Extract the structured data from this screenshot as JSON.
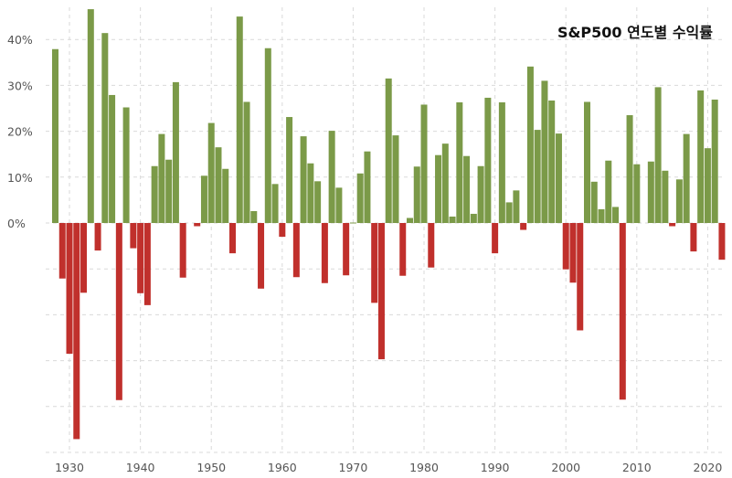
{
  "chart_data": {
    "type": "bar",
    "title": "S&P500 연도별 수익률",
    "xlabel": "",
    "ylabel": "",
    "x": [
      1928,
      1929,
      1930,
      1931,
      1932,
      1933,
      1934,
      1935,
      1936,
      1937,
      1938,
      1939,
      1940,
      1941,
      1942,
      1943,
      1944,
      1945,
      1946,
      1947,
      1948,
      1949,
      1950,
      1951,
      1952,
      1953,
      1954,
      1955,
      1956,
      1957,
      1958,
      1959,
      1960,
      1961,
      1962,
      1963,
      1964,
      1965,
      1966,
      1967,
      1968,
      1969,
      1970,
      1971,
      1972,
      1973,
      1974,
      1975,
      1976,
      1977,
      1978,
      1979,
      1980,
      1981,
      1982,
      1983,
      1984,
      1985,
      1986,
      1987,
      1988,
      1989,
      1990,
      1991,
      1992,
      1993,
      1994,
      1995,
      1996,
      1997,
      1998,
      1999,
      2000,
      2001,
      2002,
      2003,
      2004,
      2005,
      2006,
      2007,
      2008,
      2009,
      2010,
      2011,
      2012,
      2013,
      2014,
      2015,
      2016,
      2017,
      2018,
      2019,
      2020,
      2021,
      2022
    ],
    "values": [
      37.9,
      -12.1,
      -28.5,
      -47.1,
      -15.2,
      46.6,
      -6.0,
      41.4,
      27.9,
      -38.6,
      25.2,
      -5.5,
      -15.3,
      -17.9,
      12.4,
      19.4,
      13.8,
      30.7,
      -11.9,
      0.0,
      -0.7,
      10.3,
      21.8,
      16.5,
      11.8,
      -6.6,
      45.0,
      26.4,
      2.6,
      -14.3,
      38.1,
      8.5,
      -3.0,
      23.1,
      -11.8,
      18.9,
      13.0,
      9.1,
      -13.1,
      20.1,
      7.7,
      -11.4,
      0.1,
      10.8,
      15.6,
      -17.4,
      -29.7,
      31.5,
      19.1,
      -11.5,
      1.1,
      12.3,
      25.8,
      -9.7,
      14.8,
      17.3,
      1.4,
      26.3,
      14.6,
      2.0,
      12.4,
      27.3,
      -6.6,
      26.3,
      4.5,
      7.1,
      -1.5,
      34.1,
      20.3,
      31.0,
      26.7,
      19.5,
      -10.1,
      -13.0,
      -23.4,
      26.4,
      9.0,
      3.0,
      13.6,
      3.5,
      -38.5,
      23.5,
      12.8,
      0.0,
      13.4,
      29.6,
      11.4,
      -0.7,
      9.5,
      19.4,
      -6.2,
      28.9,
      16.3,
      26.9,
      -8.0
    ],
    "ylim": [
      -50,
      48
    ],
    "yticks": [
      "0%",
      "10%",
      "20%",
      "30%",
      "40%"
    ],
    "ytick_values": [
      0,
      10,
      20,
      30,
      40
    ],
    "xticks": [
      "1930",
      "1940",
      "1950",
      "1960",
      "1970",
      "1980",
      "1990",
      "2000",
      "2010",
      "2020"
    ],
    "xtick_values": [
      1930,
      1940,
      1950,
      1960,
      1970,
      1980,
      1990,
      2000,
      2010,
      2020
    ],
    "grid": true,
    "legend": "none",
    "colors": {
      "positive": "#7b9a48",
      "negative": "#c0302c",
      "grid": "#d9d9d9"
    }
  }
}
